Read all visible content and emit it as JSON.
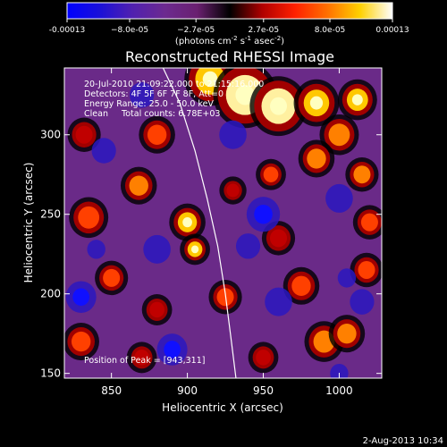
{
  "chart_data": {
    "type": "heatmap",
    "title": "Reconstructed RHESSI Image",
    "xlabel": "Heliocentric X (arcsec)",
    "ylabel": "Heliocentric Y (arcsec)",
    "xlim": [
      819,
      1028
    ],
    "ylim": [
      147,
      342
    ],
    "x_ticks": [
      850,
      900,
      950,
      1000
    ],
    "y_ticks": [
      150,
      200,
      250,
      300
    ],
    "colorbar": {
      "min": -0.00013,
      "max": 0.00013,
      "tick_labels": [
        "-0.00013",
        "−8.0e-05",
        "−2.7e-05",
        "2.7e-05",
        "8.0e-05",
        "0.00013"
      ],
      "tick_values": [
        -0.00013,
        -8e-05,
        -2.7e-05,
        2.7e-05,
        8e-05,
        0.00013
      ],
      "unit_prefix": "(photons cm",
      "unit_sup1": "-2",
      "unit_mid": " s",
      "unit_sup2": "-1",
      "unit_mid2": " asec",
      "unit_sup3": "-2",
      "unit_suffix": ")",
      "colors": [
        "#0000ff",
        "#1a10d8",
        "#5020b0",
        "#6c2a90",
        "#6a2070",
        "#000000",
        "#b00000",
        "#ff2000",
        "#ff7000",
        "#ffd000",
        "#ffffff"
      ]
    },
    "info_lines": [
      "20-Jul-2010 21:09:22.000 to 21:15:16.000",
      "Detectors: 4F 5F 6F 7F 8F, Att=0",
      "Energy Range: 25.0 - 50.0 keV",
      "Clean     Total counts: 6.78E+03"
    ],
    "peak_label": "Position of Peak = [943,311]",
    "peak": [
      943,
      311
    ],
    "limb_curve": [
      [
        884,
        342
      ],
      [
        895,
        320
      ],
      [
        905,
        290
      ],
      [
        913,
        260
      ],
      [
        920,
        230
      ],
      [
        925,
        200
      ],
      [
        929,
        170
      ],
      [
        932,
        147
      ]
    ],
    "blobs": [
      [
        915,
        335,
        14,
        0.8
      ],
      [
        938,
        325,
        18,
        1.0
      ],
      [
        960,
        318,
        16,
        0.9
      ],
      [
        985,
        320,
        12,
        0.8
      ],
      [
        1012,
        322,
        10,
        0.8
      ],
      [
        1000,
        300,
        10,
        0.7
      ],
      [
        985,
        285,
        9,
        0.6
      ],
      [
        1015,
        275,
        8,
        0.6
      ],
      [
        1020,
        245,
        8,
        0.55
      ],
      [
        1018,
        215,
        8,
        0.55
      ],
      [
        880,
        300,
        9,
        0.55
      ],
      [
        868,
        268,
        9,
        0.6
      ],
      [
        900,
        245,
        9,
        0.85
      ],
      [
        905,
        228,
        7,
        0.75
      ],
      [
        835,
        248,
        10,
        0.45
      ],
      [
        832,
        300,
        8,
        0.4
      ],
      [
        850,
        210,
        8,
        0.45
      ],
      [
        830,
        170,
        9,
        0.45
      ],
      [
        870,
        160,
        7,
        0.35
      ],
      [
        925,
        198,
        8,
        0.45
      ],
      [
        960,
        235,
        8,
        0.35
      ],
      [
        975,
        205,
        9,
        0.5
      ],
      [
        990,
        170,
        10,
        0.7
      ],
      [
        1005,
        175,
        9,
        0.6
      ],
      [
        950,
        160,
        7,
        0.4
      ],
      [
        930,
        265,
        6,
        0.35
      ],
      [
        955,
        275,
        7,
        0.45
      ],
      [
        880,
        190,
        7,
        0.35
      ],
      [
        930,
        300,
        9,
        -0.55
      ],
      [
        950,
        250,
        11,
        -0.6
      ],
      [
        960,
        195,
        9,
        -0.45
      ],
      [
        880,
        228,
        9,
        -0.5
      ],
      [
        890,
        165,
        10,
        -0.6
      ],
      [
        830,
        198,
        10,
        -0.8
      ],
      [
        845,
        290,
        8,
        -0.4
      ],
      [
        1000,
        260,
        9,
        -0.5
      ],
      [
        1015,
        195,
        8,
        -0.4
      ],
      [
        1005,
        210,
        6,
        -0.35
      ],
      [
        870,
        325,
        8,
        -0.35
      ],
      [
        940,
        230,
        8,
        -0.45
      ],
      [
        840,
        228,
        6,
        -0.4
      ],
      [
        1000,
        150,
        6,
        -0.4
      ]
    ]
  },
  "footer": {
    "date": "2-Aug-2013 10:34"
  }
}
